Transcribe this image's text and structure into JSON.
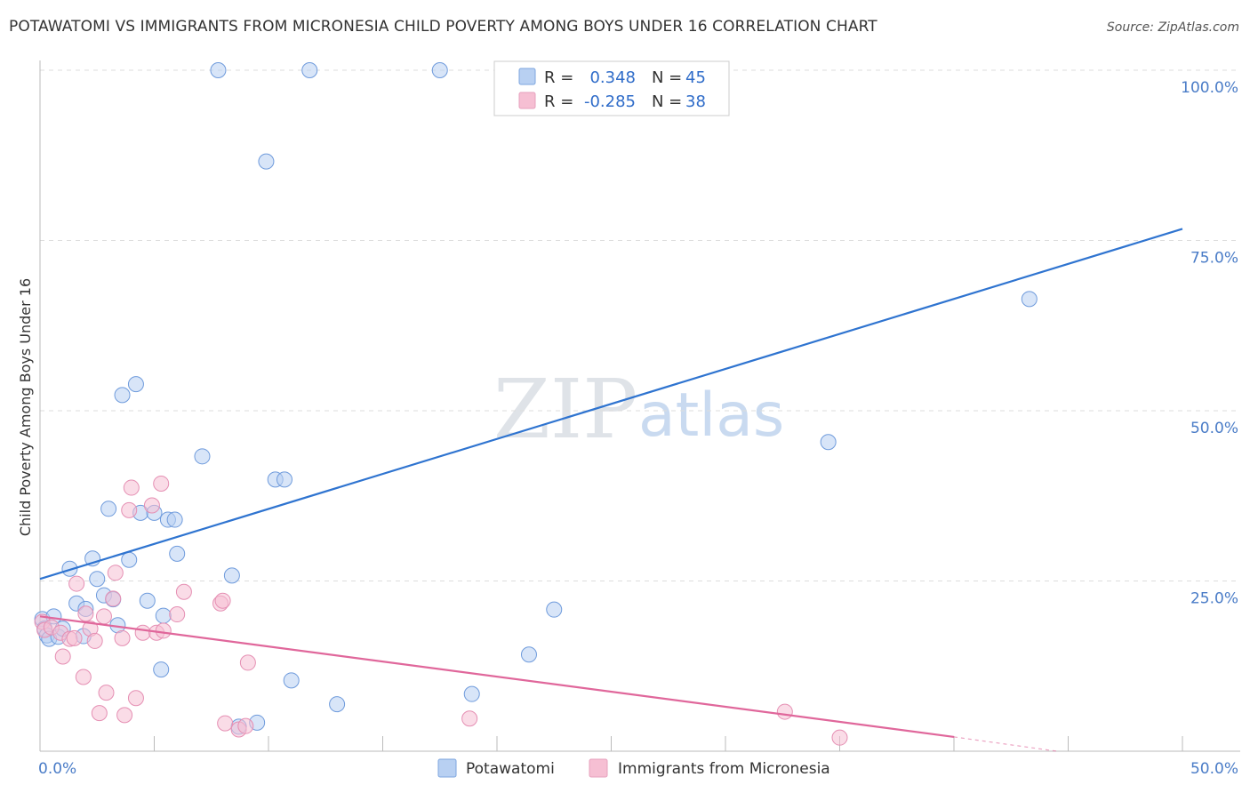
{
  "title": "POTAWATOMI VS IMMIGRANTS FROM MICRONESIA CHILD POVERTY AMONG BOYS UNDER 16 CORRELATION CHART",
  "source": "Source: ZipAtlas.com",
  "watermark": {
    "zip": "ZIP",
    "atlas": "atlas"
  },
  "legend": {
    "rows": [
      {
        "r_label": "R =",
        "r_value": "0.348",
        "n_label": "N =",
        "n_value": "45"
      },
      {
        "r_label": "R =",
        "r_value": "-0.285",
        "n_label": "N =",
        "n_value": "38"
      }
    ]
  },
  "colors": {
    "blue": "#2f74d0",
    "blue_fill": "#b8d0f2",
    "pink": "#e0679b",
    "pink_fill": "#f6bfd3",
    "grid": "#dddddd",
    "tick_text": "#4a7cc7"
  },
  "chart_data": {
    "type": "scatter",
    "title": "POTAWATOMI VS IMMIGRANTS FROM MICRONESIA CHILD POVERTY AMONG BOYS UNDER 16 CORRELATION CHART",
    "xlabel": "",
    "ylabel": "Child Poverty Among Boys Under 16",
    "xlim": [
      0,
      50
    ],
    "ylim": [
      0,
      100
    ],
    "x_tick_labels": [
      "0.0%",
      "50.0%"
    ],
    "y_tick_labels": [
      "25.0%",
      "50.0%",
      "75.0%",
      "100.0%"
    ],
    "y_ticks": [
      25,
      50,
      75,
      100
    ],
    "grid": true,
    "legend_position": "bottom",
    "series": [
      {
        "name": "Potawatomi",
        "color": "#2f74d0",
        "trend": {
          "x": [
            0,
            50
          ],
          "y": [
            25.3,
            76.7
          ]
        },
        "points": [
          [
            0.1,
            19.4
          ],
          [
            0.2,
            18.0
          ],
          [
            0.3,
            17.0
          ],
          [
            0.4,
            16.5
          ],
          [
            0.6,
            19.8
          ],
          [
            0.8,
            16.8
          ],
          [
            1.0,
            18.0
          ],
          [
            1.3,
            26.8
          ],
          [
            1.6,
            21.7
          ],
          [
            1.9,
            16.9
          ],
          [
            2.0,
            20.9
          ],
          [
            2.3,
            28.3
          ],
          [
            2.5,
            25.3
          ],
          [
            2.8,
            22.9
          ],
          [
            3.0,
            35.6
          ],
          [
            3.2,
            22.3
          ],
          [
            3.4,
            18.5
          ],
          [
            3.6,
            52.3
          ],
          [
            3.9,
            28.1
          ],
          [
            4.2,
            53.9
          ],
          [
            4.4,
            35.0
          ],
          [
            4.7,
            22.1
          ],
          [
            5.0,
            35.0
          ],
          [
            5.3,
            12.0
          ],
          [
            5.4,
            19.9
          ],
          [
            5.6,
            34.0
          ],
          [
            5.9,
            34.0
          ],
          [
            6.0,
            29.0
          ],
          [
            7.1,
            43.3
          ],
          [
            7.8,
            100.0
          ],
          [
            8.4,
            25.8
          ],
          [
            8.7,
            3.6
          ],
          [
            9.5,
            4.2
          ],
          [
            9.9,
            86.6
          ],
          [
            10.3,
            39.9
          ],
          [
            10.7,
            39.9
          ],
          [
            11.0,
            10.4
          ],
          [
            11.8,
            100.0
          ],
          [
            13.0,
            6.9
          ],
          [
            17.5,
            100.0
          ],
          [
            18.9,
            8.4
          ],
          [
            21.4,
            14.2
          ],
          [
            22.5,
            20.8
          ],
          [
            34.5,
            45.4
          ],
          [
            43.3,
            66.4
          ]
        ]
      },
      {
        "name": "Immigrants from Micronesia",
        "color": "#e0679b",
        "trend": {
          "x": [
            0,
            40.0
          ],
          "y": [
            19.8,
            2.1
          ]
        },
        "trend_dashed": {
          "x": [
            40.0,
            44.5
          ],
          "y": [
            2.1,
            0.0
          ]
        },
        "points": [
          [
            0.1,
            19.0
          ],
          [
            0.2,
            17.8
          ],
          [
            0.5,
            18.2
          ],
          [
            0.9,
            17.4
          ],
          [
            1.0,
            13.9
          ],
          [
            1.3,
            16.5
          ],
          [
            1.5,
            16.6
          ],
          [
            1.6,
            24.6
          ],
          [
            1.9,
            10.9
          ],
          [
            2.0,
            20.2
          ],
          [
            2.2,
            18.0
          ],
          [
            2.4,
            16.2
          ],
          [
            2.6,
            5.6
          ],
          [
            2.8,
            19.8
          ],
          [
            2.9,
            8.6
          ],
          [
            3.2,
            22.4
          ],
          [
            3.3,
            26.2
          ],
          [
            3.6,
            16.6
          ],
          [
            3.7,
            5.3
          ],
          [
            3.9,
            35.4
          ],
          [
            4.0,
            38.7
          ],
          [
            4.2,
            7.8
          ],
          [
            4.5,
            17.4
          ],
          [
            4.9,
            36.1
          ],
          [
            5.1,
            17.4
          ],
          [
            5.3,
            39.3
          ],
          [
            5.4,
            17.7
          ],
          [
            6.0,
            20.1
          ],
          [
            6.3,
            23.4
          ],
          [
            7.9,
            21.7
          ],
          [
            8.0,
            22.1
          ],
          [
            8.1,
            4.1
          ],
          [
            8.7,
            3.2
          ],
          [
            9.0,
            3.7
          ],
          [
            9.1,
            13.0
          ],
          [
            18.8,
            4.8
          ],
          [
            32.6,
            5.8
          ],
          [
            35.0,
            2.0
          ]
        ]
      }
    ]
  }
}
